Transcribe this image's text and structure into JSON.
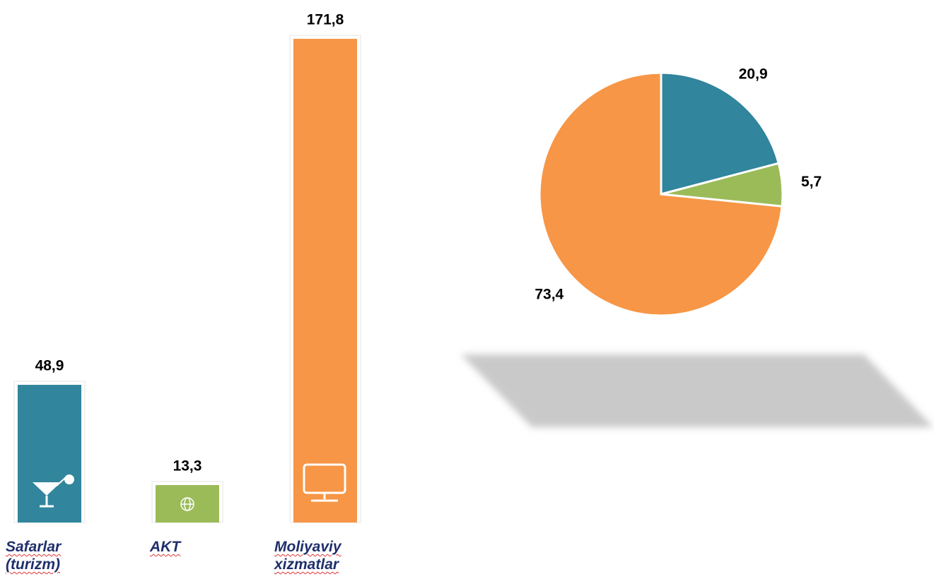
{
  "chart_data": [
    {
      "type": "bar",
      "categories": [
        "Safarlar (turizm)",
        "AKT",
        "Moliyaviy xizmatlar"
      ],
      "values": [
        48.9,
        13.3,
        171.8
      ],
      "value_labels": [
        "48,9",
        "13,3",
        "171,8"
      ],
      "colors": [
        "#31859c",
        "#9bbb59",
        "#f79646"
      ]
    },
    {
      "type": "pie",
      "values": [
        20.9,
        5.7,
        73.4
      ],
      "value_labels": [
        "20,9",
        "5,7",
        "73,4"
      ],
      "colors": [
        "#31859c",
        "#9bbb59",
        "#f79646"
      ]
    }
  ]
}
